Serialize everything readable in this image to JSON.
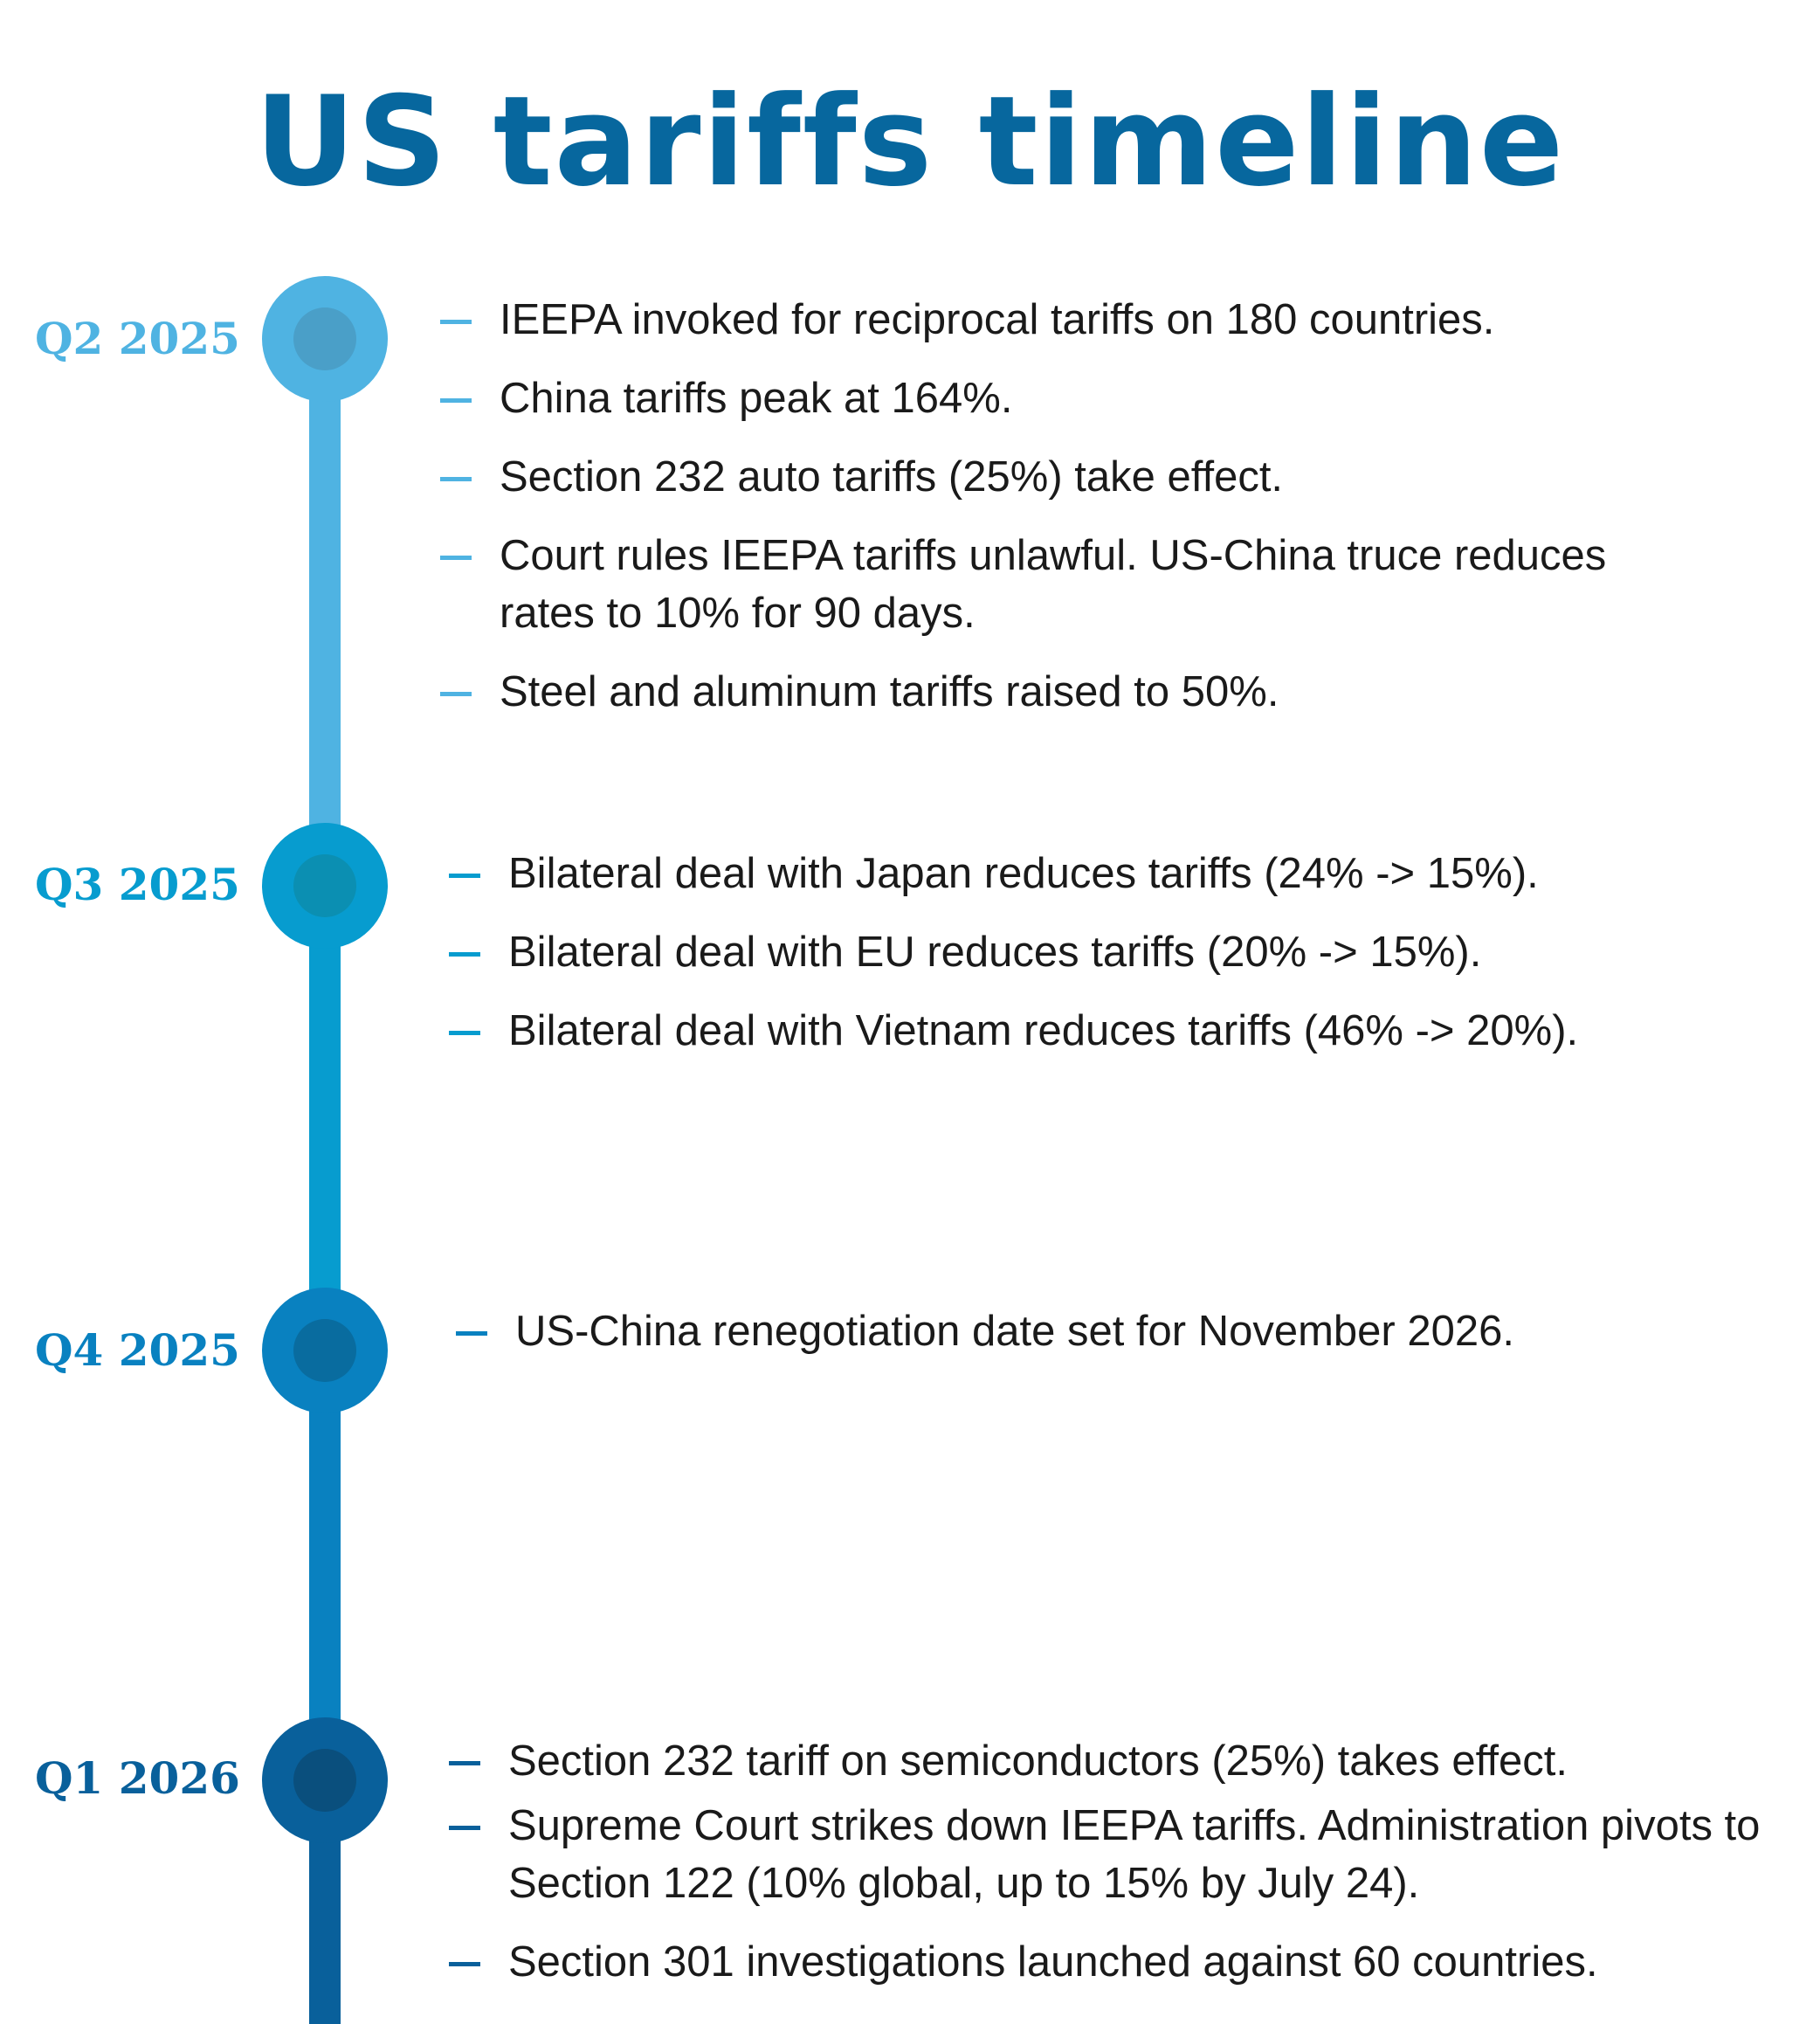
{
  "title": "US tariffs timeline",
  "colors": {
    "title": "#07679e",
    "text": "#1a1a1a"
  },
  "quarters": [
    {
      "label": "Q2 2025",
      "color": "#4fb3e2",
      "inner_color": "#4a9fc8",
      "items": [
        "IEEPA invoked for reciprocal tariffs on 180 countries.",
        "China tariffs peak at 164%.",
        "Section 232 auto tariffs (25%) take effect.",
        "Court rules IEEPA tariffs unlawful. US-China truce reduces rates to 10% for 90 days.",
        "Steel and aluminum tariffs raised to 50%."
      ]
    },
    {
      "label": "Q3 2025",
      "color": "#079ccf",
      "inner_color": "#0b8fb2",
      "items": [
        "Bilateral deal with Japan reduces tariffs (24% -> 15%).",
        "Bilateral deal with EU reduces tariffs (20% -> 15%).",
        "Bilateral deal with Vietnam reduces tariffs (46% -> 20%)."
      ]
    },
    {
      "label": "Q4 2025",
      "color": "#0981c0",
      "inner_color": "#096c9f",
      "items": [
        "US-China renegotiation date set for November 2026."
      ]
    },
    {
      "label": "Q1 2026",
      "color": "#09609b",
      "inner_color": "#0a4f7d",
      "items": [
        "Section 232 tariff on semiconductors (25%) takes effect.",
        "Supreme Court strikes down IEEPA tariffs. Administration pivots to Section 122 (10% global, up to 15% by July 24).",
        "Section 301 investigations launched against 60 countries."
      ]
    }
  ]
}
